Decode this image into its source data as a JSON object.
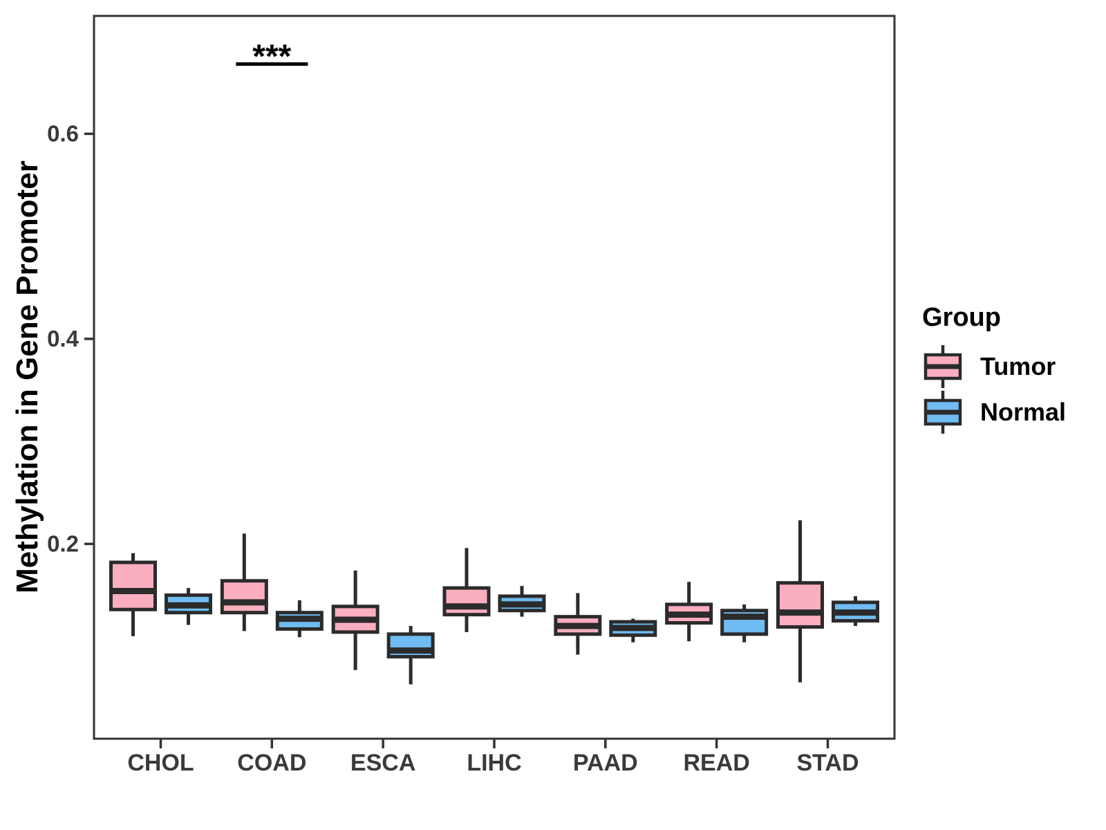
{
  "page": {
    "background": "#FFFFFF"
  },
  "chart_data": {
    "type": "grouped_boxplot",
    "title": "",
    "ylabel": "Methylation in Gene Promoter",
    "xlabel": "",
    "categories": [
      "CHOL",
      "COAD",
      "ESCA",
      "LIHC",
      "PAAD",
      "READ",
      "STAD"
    ],
    "y_ticks": {
      "values": [
        0.2,
        0.4,
        0.6
      ],
      "labels": [
        "0.2",
        "0.4",
        "0.6"
      ]
    },
    "ylim": [
      0.01,
      0.715
    ],
    "grid": false,
    "legend": {
      "title": "Group",
      "position": "right"
    },
    "series": [
      {
        "name": "Tumor",
        "color": "#FBAEC0",
        "boxes": [
          {
            "category": "CHOL",
            "min": 0.11,
            "q1": 0.136,
            "median": 0.154,
            "q3": 0.182,
            "max": 0.191
          },
          {
            "category": "COAD",
            "min": 0.115,
            "q1": 0.133,
            "median": 0.143,
            "q3": 0.164,
            "max": 0.21
          },
          {
            "category": "ESCA",
            "min": 0.077,
            "q1": 0.114,
            "median": 0.126,
            "q3": 0.139,
            "max": 0.174
          },
          {
            "category": "LIHC",
            "min": 0.114,
            "q1": 0.131,
            "median": 0.139,
            "q3": 0.157,
            "max": 0.196
          },
          {
            "category": "PAAD",
            "min": 0.092,
            "q1": 0.112,
            "median": 0.12,
            "q3": 0.129,
            "max": 0.152
          },
          {
            "category": "READ",
            "min": 0.105,
            "q1": 0.123,
            "median": 0.131,
            "q3": 0.141,
            "max": 0.163
          },
          {
            "category": "STAD",
            "min": 0.065,
            "q1": 0.119,
            "median": 0.133,
            "q3": 0.162,
            "max": 0.223
          }
        ]
      },
      {
        "name": "Normal",
        "color": "#70BCF2",
        "boxes": [
          {
            "category": "CHOL",
            "min": 0.121,
            "q1": 0.133,
            "median": 0.14,
            "q3": 0.15,
            "max": 0.157
          },
          {
            "category": "COAD",
            "min": 0.109,
            "q1": 0.117,
            "median": 0.127,
            "q3": 0.133,
            "max": 0.145
          },
          {
            "category": "ESCA",
            "min": 0.063,
            "q1": 0.09,
            "median": 0.096,
            "q3": 0.112,
            "max": 0.12
          },
          {
            "category": "LIHC",
            "min": 0.129,
            "q1": 0.135,
            "median": 0.141,
            "q3": 0.149,
            "max": 0.159
          },
          {
            "category": "PAAD",
            "min": 0.104,
            "q1": 0.111,
            "median": 0.118,
            "q3": 0.124,
            "max": 0.127
          },
          {
            "category": "READ",
            "min": 0.104,
            "q1": 0.112,
            "median": 0.129,
            "q3": 0.135,
            "max": 0.141
          },
          {
            "category": "STAD",
            "min": 0.12,
            "q1": 0.125,
            "median": 0.133,
            "q3": 0.143,
            "max": 0.149
          }
        ]
      }
    ],
    "annotations": [
      {
        "label": "***",
        "category": "COAD",
        "line_y": 0.668
      }
    ],
    "colors": {
      "tumor_fill": "#FBAEC0",
      "normal_fill": "#70BCF2",
      "box_stroke": "#2B2B2B",
      "panel_border": "#333333",
      "tick_mark": "#333333",
      "tick_text": "#3A3A3A",
      "annotation": "#000000"
    }
  }
}
